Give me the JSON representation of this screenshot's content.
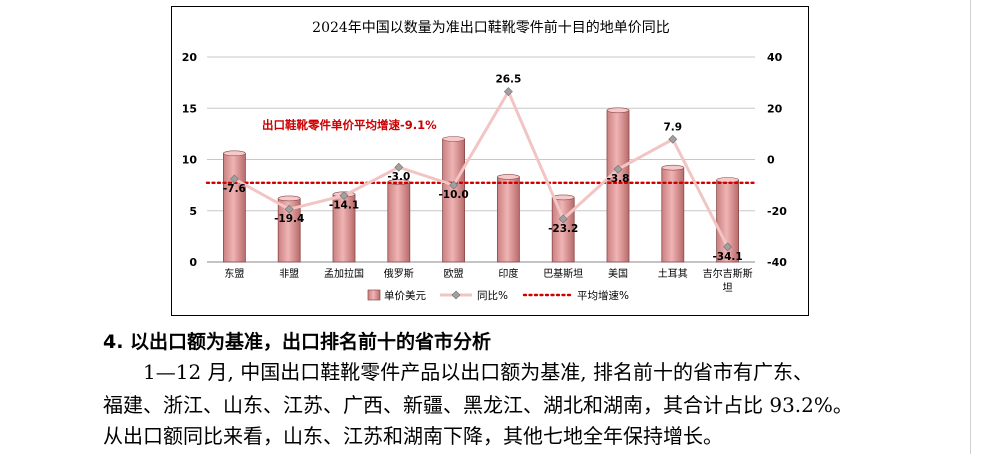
{
  "chart_data": {
    "type": "bar+line",
    "title": "2024年中国以数量为准出口鞋靴零件前十目的地单价同比",
    "categories": [
      "东盟",
      "非盟",
      "孟加拉国",
      "俄罗斯",
      "欧盟",
      "印度",
      "巴基斯坦",
      "美国",
      "土耳其",
      "吉尔吉斯斯坦"
    ],
    "category_display": [
      "东盟",
      "非盟",
      "孟加拉国",
      "俄罗斯",
      "欧盟",
      "印度",
      "巴基斯坦",
      "美国",
      "土耳其",
      "吉尔吉斯斯"
    ],
    "category_overflow": "坦",
    "series": [
      {
        "name": "单价美元",
        "type": "bar",
        "axis": "left",
        "color": "#e8a0a0",
        "values": [
          10.6,
          6.2,
          6.6,
          7.8,
          12.0,
          8.3,
          6.3,
          14.8,
          9.2,
          8.0
        ]
      },
      {
        "name": "同比%",
        "type": "line",
        "axis": "right",
        "color": "#f2c4c4",
        "values": [
          -7.6,
          -19.4,
          -14.1,
          -3.0,
          -10.0,
          26.5,
          -23.2,
          -3.8,
          7.9,
          -34.1
        ],
        "labels": [
          "-7.6",
          "-19.4",
          "-14.1",
          "-3.0",
          "-10.0",
          "26.5",
          "-23.2",
          "-3.8",
          "7.9",
          "-34.1"
        ]
      },
      {
        "name": "平均增速%",
        "type": "line",
        "axis": "right",
        "style": "dotted",
        "color": "#d00000",
        "value": -9.1
      }
    ],
    "y_left": {
      "min": 0,
      "max": 20,
      "ticks": [
        "0",
        "5",
        "10",
        "15",
        "20"
      ]
    },
    "y_right": {
      "min": -40,
      "max": 40,
      "ticks": [
        "-40",
        "-20",
        "0",
        "20",
        "40"
      ]
    },
    "annotation": "出口鞋靴零件单价平均增速-9.1%",
    "grid": true,
    "legend_position": "bottom"
  },
  "section": {
    "heading": "4. 以出口额为基准，出口排名前十的省市分析",
    "lines": [
      "1—12 月, 中国出口鞋靴零件产品以出口额为基准, 排名前十的省市有广东、",
      "福建、浙江、山东、江苏、广西、新疆、黑龙江、湖北和湖南，其合计占比 93.2%。",
      "从出口额同比来看，山东、江苏和湖南下降，其他七地全年保持增长。"
    ]
  }
}
